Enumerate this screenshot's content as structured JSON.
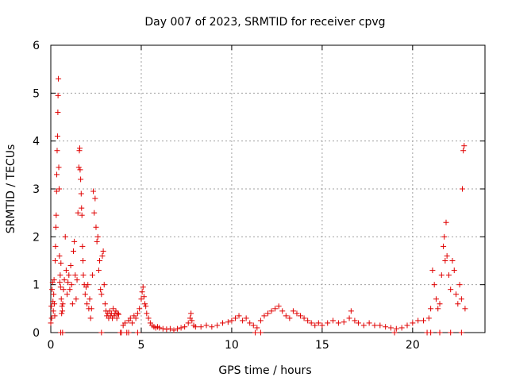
{
  "chart_data": {
    "type": "scatter",
    "title": "Day 007 of 2023, SRMTID for receiver cpvg",
    "xlabel": "GPS time / hours",
    "ylabel": "SRMTID / TECUs",
    "xlim": [
      0,
      24
    ],
    "ylim": [
      0,
      6
    ],
    "xticks": [
      0,
      5,
      10,
      15,
      20
    ],
    "yticks": [
      0,
      1,
      2,
      3,
      4,
      5,
      6
    ],
    "grid": true,
    "marker": "+",
    "series": [
      {
        "name": "SRMTID",
        "color": "#e00000",
        "points": [
          [
            0.0,
            0.2
          ],
          [
            0.03,
            0.55
          ],
          [
            0.05,
            0.3
          ],
          [
            0.07,
            0.9
          ],
          [
            0.1,
            1.05
          ],
          [
            0.12,
            0.65
          ],
          [
            0.14,
            0.45
          ],
          [
            0.16,
            0.8
          ],
          [
            0.18,
            1.1
          ],
          [
            0.2,
            0.6
          ],
          [
            0.22,
            0.35
          ],
          [
            0.24,
            1.5
          ],
          [
            0.26,
            1.8
          ],
          [
            0.28,
            2.2
          ],
          [
            0.3,
            2.45
          ],
          [
            0.32,
            2.95
          ],
          [
            0.33,
            3.3
          ],
          [
            0.35,
            3.8
          ],
          [
            0.37,
            4.1
          ],
          [
            0.39,
            4.6
          ],
          [
            0.4,
            4.95
          ],
          [
            0.42,
            5.3
          ],
          [
            0.44,
            3.45
          ],
          [
            0.46,
            3.0
          ],
          [
            0.48,
            1.6
          ],
          [
            0.5,
            1.05
          ],
          [
            0.52,
            1.2
          ],
          [
            0.54,
            0.95
          ],
          [
            0.56,
            1.45
          ],
          [
            0.58,
            0.7
          ],
          [
            0.6,
            0.4
          ],
          [
            0.62,
            0.55
          ],
          [
            0.64,
            0.45
          ],
          [
            0.66,
            0.6
          ],
          [
            0.7,
            0.9
          ],
          [
            0.75,
            1.1
          ],
          [
            0.8,
            2.0
          ],
          [
            0.85,
            1.3
          ],
          [
            0.9,
            0.8
          ],
          [
            0.95,
            1.05
          ],
          [
            1.0,
            1.2
          ],
          [
            1.05,
            0.9
          ],
          [
            1.1,
            1.4
          ],
          [
            1.15,
            1.0
          ],
          [
            1.2,
            0.6
          ],
          [
            1.25,
            1.7
          ],
          [
            1.3,
            1.9
          ],
          [
            1.35,
            1.2
          ],
          [
            1.4,
            0.7
          ],
          [
            1.45,
            1.1
          ],
          [
            1.5,
            2.5
          ],
          [
            1.55,
            3.45
          ],
          [
            1.58,
            3.8
          ],
          [
            1.6,
            3.85
          ],
          [
            1.62,
            3.4
          ],
          [
            1.65,
            3.2
          ],
          [
            1.68,
            2.9
          ],
          [
            1.7,
            2.6
          ],
          [
            1.72,
            2.45
          ],
          [
            1.75,
            1.8
          ],
          [
            1.78,
            1.5
          ],
          [
            1.8,
            1.2
          ],
          [
            1.85,
            1.0
          ],
          [
            1.9,
            0.8
          ],
          [
            1.95,
            0.95
          ],
          [
            2.0,
            0.6
          ],
          [
            2.05,
            1.0
          ],
          [
            2.1,
            0.5
          ],
          [
            2.15,
            0.7
          ],
          [
            2.2,
            0.3
          ],
          [
            2.25,
            0.5
          ],
          [
            2.3,
            1.2
          ],
          [
            2.35,
            2.95
          ],
          [
            2.4,
            2.5
          ],
          [
            2.45,
            2.8
          ],
          [
            2.5,
            2.2
          ],
          [
            2.55,
            1.9
          ],
          [
            2.6,
            2.0
          ],
          [
            2.65,
            1.3
          ],
          [
            2.7,
            1.5
          ],
          [
            2.75,
            0.9
          ],
          [
            2.8,
            0.8
          ],
          [
            2.85,
            1.6
          ],
          [
            2.9,
            1.7
          ],
          [
            2.95,
            1.0
          ],
          [
            3.0,
            0.6
          ],
          [
            3.05,
            0.45
          ],
          [
            3.1,
            0.35
          ],
          [
            3.15,
            0.4
          ],
          [
            3.2,
            0.3
          ],
          [
            3.25,
            0.45
          ],
          [
            3.3,
            0.35
          ],
          [
            3.35,
            0.4
          ],
          [
            3.4,
            0.3
          ],
          [
            3.45,
            0.5
          ],
          [
            3.5,
            0.35
          ],
          [
            3.55,
            0.4
          ],
          [
            3.6,
            0.45
          ],
          [
            3.65,
            0.3
          ],
          [
            3.7,
            0.4
          ],
          [
            3.75,
            0.38
          ],
          [
            3.85,
            0.0
          ],
          [
            4.0,
            0.15
          ],
          [
            4.1,
            0.2
          ],
          [
            4.2,
            0.0
          ],
          [
            4.3,
            0.25
          ],
          [
            4.4,
            0.3
          ],
          [
            4.5,
            0.2
          ],
          [
            4.6,
            0.35
          ],
          [
            4.7,
            0.3
          ],
          [
            4.8,
            0.4
          ],
          [
            4.9,
            0.5
          ],
          [
            5.0,
            0.7
          ],
          [
            5.05,
            0.85
          ],
          [
            5.1,
            0.95
          ],
          [
            5.15,
            0.75
          ],
          [
            5.2,
            0.6
          ],
          [
            5.25,
            0.55
          ],
          [
            5.3,
            0.4
          ],
          [
            5.4,
            0.3
          ],
          [
            5.5,
            0.2
          ],
          [
            5.6,
            0.15
          ],
          [
            5.7,
            0.12
          ],
          [
            5.8,
            0.1
          ],
          [
            5.9,
            0.12
          ],
          [
            6.0,
            0.1
          ],
          [
            6.2,
            0.08
          ],
          [
            6.4,
            0.07
          ],
          [
            6.6,
            0.08
          ],
          [
            6.8,
            0.05
          ],
          [
            7.0,
            0.08
          ],
          [
            7.2,
            0.1
          ],
          [
            7.4,
            0.12
          ],
          [
            7.6,
            0.2
          ],
          [
            7.7,
            0.3
          ],
          [
            7.75,
            0.4
          ],
          [
            7.8,
            0.25
          ],
          [
            7.9,
            0.15
          ],
          [
            8.0,
            0.12
          ],
          [
            8.3,
            0.12
          ],
          [
            8.6,
            0.15
          ],
          [
            8.9,
            0.12
          ],
          [
            9.2,
            0.15
          ],
          [
            9.5,
            0.2
          ],
          [
            9.8,
            0.22
          ],
          [
            10.0,
            0.25
          ],
          [
            10.2,
            0.3
          ],
          [
            10.4,
            0.35
          ],
          [
            10.6,
            0.25
          ],
          [
            10.8,
            0.3
          ],
          [
            11.0,
            0.2
          ],
          [
            11.2,
            0.15
          ],
          [
            11.4,
            0.1
          ],
          [
            11.6,
            0.25
          ],
          [
            11.8,
            0.35
          ],
          [
            12.0,
            0.4
          ],
          [
            12.2,
            0.45
          ],
          [
            12.4,
            0.5
          ],
          [
            12.6,
            0.55
          ],
          [
            12.8,
            0.45
          ],
          [
            13.0,
            0.35
          ],
          [
            13.2,
            0.3
          ],
          [
            13.4,
            0.45
          ],
          [
            13.6,
            0.4
          ],
          [
            13.8,
            0.35
          ],
          [
            14.0,
            0.3
          ],
          [
            14.2,
            0.25
          ],
          [
            14.4,
            0.2
          ],
          [
            14.6,
            0.15
          ],
          [
            14.8,
            0.2
          ],
          [
            15.0,
            0.15
          ],
          [
            15.3,
            0.2
          ],
          [
            15.6,
            0.25
          ],
          [
            15.9,
            0.2
          ],
          [
            16.2,
            0.22
          ],
          [
            16.5,
            0.3
          ],
          [
            16.6,
            0.45
          ],
          [
            16.8,
            0.25
          ],
          [
            17.0,
            0.2
          ],
          [
            17.3,
            0.15
          ],
          [
            17.6,
            0.2
          ],
          [
            17.9,
            0.15
          ],
          [
            18.2,
            0.15
          ],
          [
            18.5,
            0.12
          ],
          [
            18.8,
            0.1
          ],
          [
            19.1,
            0.08
          ],
          [
            19.4,
            0.1
          ],
          [
            19.7,
            0.15
          ],
          [
            20.0,
            0.2
          ],
          [
            20.3,
            0.25
          ],
          [
            20.6,
            0.25
          ],
          [
            20.9,
            0.3
          ],
          [
            21.0,
            0.5
          ],
          [
            21.1,
            1.3
          ],
          [
            21.2,
            1.0
          ],
          [
            21.3,
            0.7
          ],
          [
            21.4,
            0.5
          ],
          [
            21.5,
            0.6
          ],
          [
            21.6,
            1.2
          ],
          [
            21.7,
            1.8
          ],
          [
            21.75,
            2.0
          ],
          [
            21.8,
            1.5
          ],
          [
            21.85,
            2.3
          ],
          [
            21.9,
            1.6
          ],
          [
            22.0,
            1.2
          ],
          [
            22.1,
            0.9
          ],
          [
            22.2,
            1.5
          ],
          [
            22.3,
            1.3
          ],
          [
            22.4,
            0.8
          ],
          [
            22.5,
            0.6
          ],
          [
            22.6,
            1.0
          ],
          [
            22.7,
            0.7
          ],
          [
            22.75,
            3.0
          ],
          [
            22.8,
            3.8
          ],
          [
            22.85,
            3.9
          ],
          [
            22.9,
            0.5
          ],
          [
            0.55,
            0.0
          ],
          [
            0.65,
            0.0
          ],
          [
            2.8,
            0.0
          ],
          [
            3.9,
            0.0
          ],
          [
            4.3,
            0.0
          ],
          [
            4.8,
            0.0
          ],
          [
            11.3,
            0.0
          ],
          [
            11.6,
            0.0
          ],
          [
            19.0,
            0.0
          ],
          [
            20.8,
            0.0
          ],
          [
            21.0,
            0.0
          ],
          [
            21.5,
            0.0
          ],
          [
            22.1,
            0.0
          ],
          [
            22.7,
            0.0
          ]
        ]
      }
    ]
  }
}
